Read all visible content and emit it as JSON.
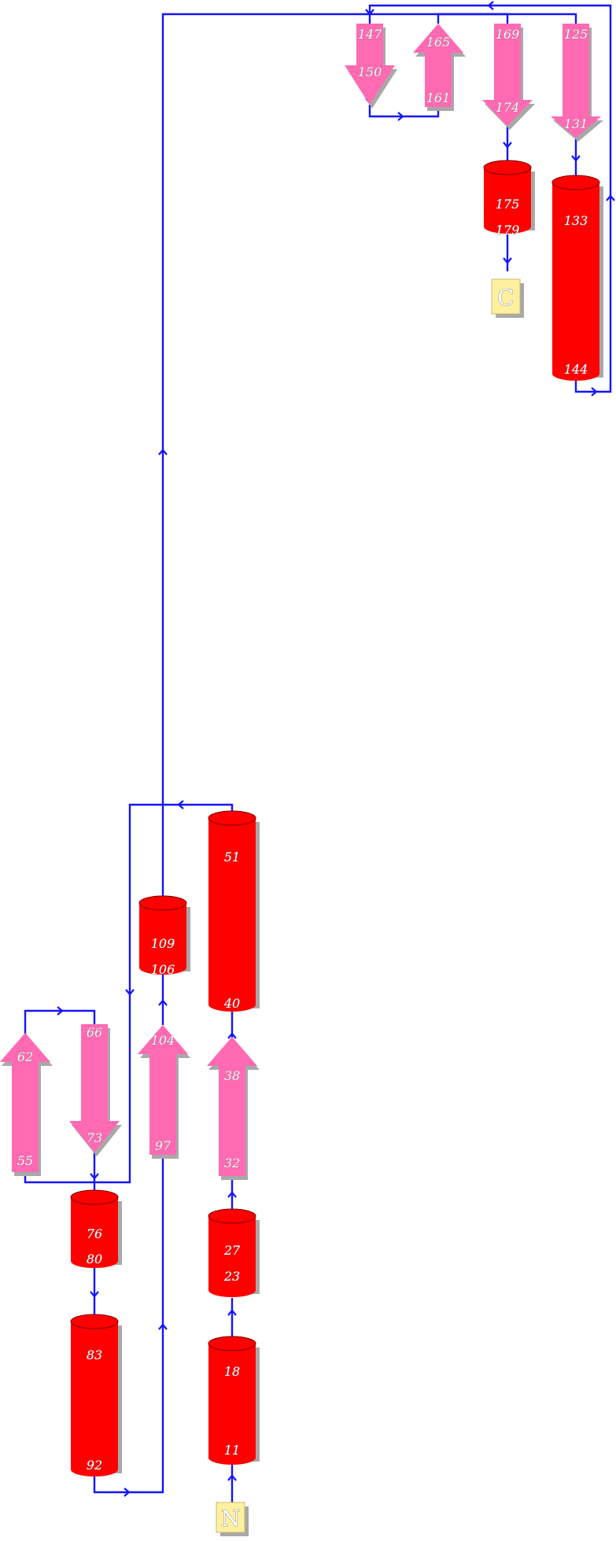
{
  "colors": {
    "helix": "#ff0000",
    "strand": "#ff6ab3",
    "connection": "#1414ff",
    "terminus": "#fff0a0",
    "shadow": "#a8a8a8"
  },
  "termini": {
    "n": "N",
    "c": "C"
  },
  "helices": [
    {
      "id": "h1",
      "start": "11",
      "end": "18"
    },
    {
      "id": "h2",
      "start": "23",
      "end": "27"
    },
    {
      "id": "h3",
      "start": "40",
      "end": "51"
    },
    {
      "id": "h4",
      "start": "76",
      "end": "80"
    },
    {
      "id": "h5",
      "start": "83",
      "end": "92"
    },
    {
      "id": "h6",
      "start": "106",
      "end": "109"
    },
    {
      "id": "h7",
      "start": "133",
      "end": "144"
    },
    {
      "id": "h8",
      "start": "175",
      "end": "179"
    }
  ],
  "strands": [
    {
      "id": "s1",
      "start": "32",
      "end": "38",
      "direction": "up"
    },
    {
      "id": "s2",
      "start": "55",
      "end": "62",
      "direction": "up"
    },
    {
      "id": "s3",
      "start": "66",
      "end": "73",
      "direction": "down"
    },
    {
      "id": "s4",
      "start": "97",
      "end": "104",
      "direction": "up"
    },
    {
      "id": "s5",
      "start": "125",
      "end": "131",
      "direction": "down"
    },
    {
      "id": "s6",
      "start": "147",
      "end": "150",
      "direction": "down"
    },
    {
      "id": "s7",
      "start": "161",
      "end": "165",
      "direction": "up"
    },
    {
      "id": "s8",
      "start": "169",
      "end": "174",
      "direction": "down"
    }
  ]
}
